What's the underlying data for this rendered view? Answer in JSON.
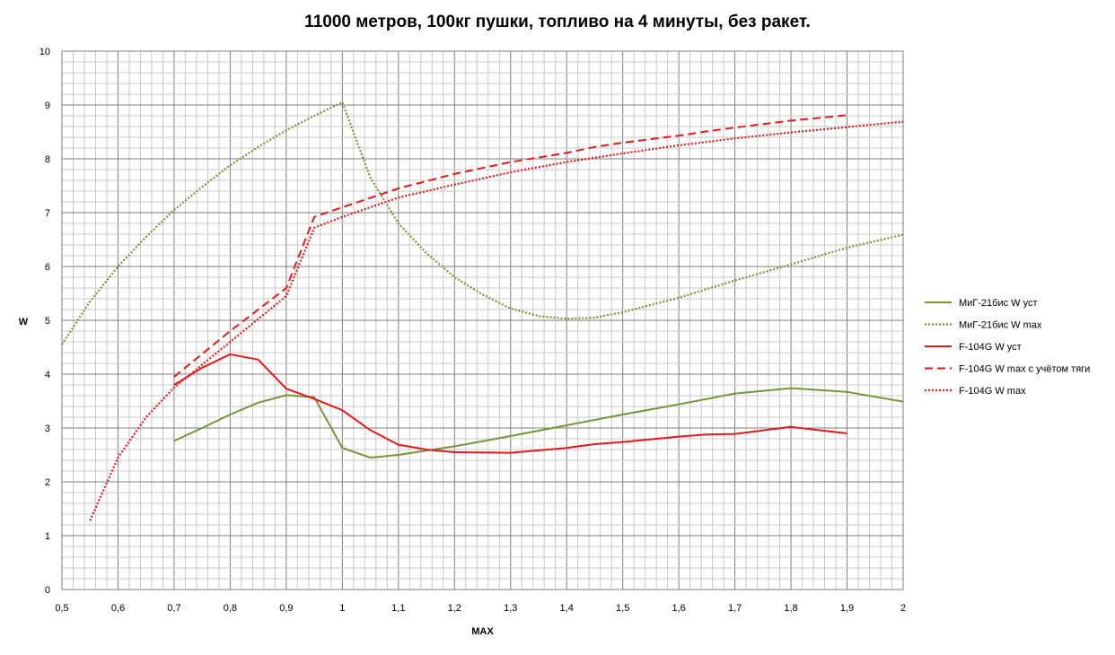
{
  "chart_data": {
    "type": "line",
    "title": "11000 метров, 100кг пушки, топливо на 4 минуты, без ракет.",
    "xlabel": "MAX",
    "ylabel": "W",
    "xlim": [
      0.5,
      2
    ],
    "ylim": [
      0,
      10
    ],
    "x_ticks": [
      "0,5",
      "0,6",
      "0,7",
      "0,8",
      "0,9",
      "1",
      "1,1",
      "1,2",
      "1,3",
      "1,4",
      "1,5",
      "1,6",
      "1,7",
      "1,8",
      "1,9",
      "2"
    ],
    "y_ticks": [
      "0",
      "1",
      "2",
      "3",
      "4",
      "5",
      "6",
      "7",
      "8",
      "9",
      "10"
    ],
    "grid": true,
    "legend_position": "right",
    "series": [
      {
        "name": "МиГ-21бис W уст",
        "color": "#77933C",
        "style": "solid",
        "x": [
          0.7,
          0.75,
          0.8,
          0.85,
          0.9,
          0.95,
          1.0,
          1.05,
          1.1,
          1.15,
          1.2,
          1.3,
          1.4,
          1.5,
          1.6,
          1.7,
          1.8,
          1.9,
          2.0
        ],
        "y": [
          2.76,
          3.0,
          3.25,
          3.47,
          3.61,
          3.57,
          2.63,
          2.45,
          2.5,
          2.58,
          2.66,
          2.85,
          3.05,
          3.25,
          3.44,
          3.64,
          3.74,
          3.67,
          3.49
        ]
      },
      {
        "name": "МиГ-21бис W max",
        "color": "#77933C",
        "style": "dotted",
        "x": [
          0.5,
          0.55,
          0.6,
          0.65,
          0.7,
          0.75,
          0.8,
          0.85,
          0.9,
          0.95,
          1.0,
          1.05,
          1.1,
          1.15,
          1.2,
          1.25,
          1.3,
          1.35,
          1.4,
          1.45,
          1.5,
          1.6,
          1.7,
          1.8,
          1.9,
          2.0
        ],
        "y": [
          4.55,
          5.35,
          6.0,
          6.55,
          7.05,
          7.48,
          7.88,
          8.22,
          8.53,
          8.8,
          9.05,
          7.65,
          6.8,
          6.25,
          5.8,
          5.48,
          5.22,
          5.08,
          5.03,
          5.05,
          5.15,
          5.42,
          5.74,
          6.04,
          6.35,
          6.59
        ]
      },
      {
        "name": "F-104G W уст",
        "color": "#E31A1C",
        "style": "solid",
        "x": [
          0.7,
          0.75,
          0.8,
          0.85,
          0.9,
          0.95,
          1.0,
          1.05,
          1.1,
          1.15,
          1.2,
          1.3,
          1.4,
          1.45,
          1.5,
          1.6,
          1.65,
          1.7,
          1.8,
          1.9
        ],
        "y": [
          3.8,
          4.12,
          4.37,
          4.27,
          3.73,
          3.54,
          3.33,
          2.96,
          2.69,
          2.6,
          2.55,
          2.54,
          2.63,
          2.7,
          2.74,
          2.84,
          2.88,
          2.89,
          3.02,
          2.9
        ]
      },
      {
        "name": "F-104G W max  с учётом тяги",
        "color": "#E31A1C",
        "style": "dashed",
        "x": [
          0.7,
          0.8,
          0.9,
          0.95,
          1.0,
          1.1,
          1.2,
          1.3,
          1.4,
          1.45,
          1.5,
          1.6,
          1.65,
          1.7,
          1.8,
          1.9
        ],
        "y": [
          3.95,
          4.8,
          5.6,
          6.92,
          7.1,
          7.45,
          7.72,
          7.94,
          8.11,
          8.22,
          8.3,
          8.43,
          8.51,
          8.58,
          8.71,
          8.81
        ]
      },
      {
        "name": "F-104G W max",
        "color": "#E31A1C",
        "style": "dotted",
        "x": [
          0.55,
          0.6,
          0.65,
          0.7,
          0.8,
          0.9,
          0.95,
          1.0,
          1.1,
          1.2,
          1.3,
          1.4,
          1.5,
          1.6,
          1.7,
          1.8,
          1.9,
          2.0
        ],
        "y": [
          1.28,
          2.45,
          3.2,
          3.75,
          4.6,
          5.45,
          6.72,
          6.92,
          7.28,
          7.52,
          7.75,
          7.94,
          8.1,
          8.25,
          8.38,
          8.49,
          8.59,
          8.69
        ]
      }
    ]
  }
}
